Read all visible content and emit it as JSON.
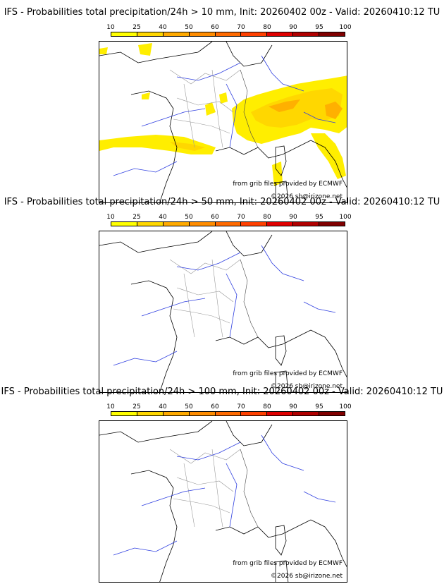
{
  "colorbar": {
    "ticks": [
      "10",
      "25",
      "40",
      "50",
      "60",
      "70",
      "80",
      "90",
      "95",
      "100"
    ],
    "colors": [
      "#ffff00",
      "#ffd700",
      "#ffaa00",
      "#ff8c00",
      "#ff6a00",
      "#ff4000",
      "#e00000",
      "#b00000",
      "#800000"
    ]
  },
  "credits": {
    "source": "from grib files provided by ECMWF",
    "copyright": "©2026 sb@irizone.net"
  },
  "panels": [
    {
      "title": "IFS - Probabilities total precipitation/24h > 10 mm, Init: 20260402 00z - Valid: 20260410:12 TU",
      "threshold_mm": 10
    },
    {
      "title": "IFS - Probabilities total precipitation/24h > 50 mm, Init: 20260402 00z - Valid: 20260410:12 TU",
      "threshold_mm": 50
    },
    {
      "title": "IFS - Probabilities total precipitation/24h > 100 mm, Init: 20260402 00z - Valid: 20260410:12 TU",
      "threshold_mm": 100
    }
  ]
}
